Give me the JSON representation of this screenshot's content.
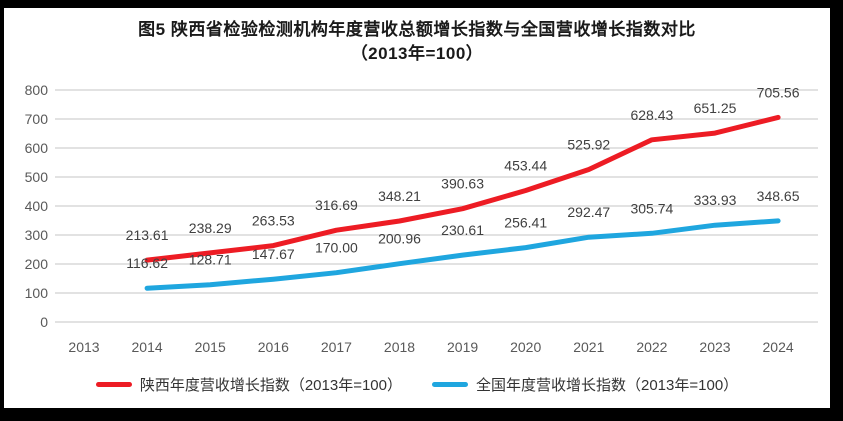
{
  "title": {
    "line1": "图5  陕西省检验检测机构年度营收总额增长指数与全国营收增长指数对比",
    "line2": "（2013年=100）"
  },
  "colors": {
    "shaanxi_line": "#ED1C24",
    "national_line": "#1FA6DF",
    "gridline": "#D9D9D9",
    "axis_text": "#595959",
    "data_label_text": "#404040",
    "frame": "#000000",
    "background": "#FFFFFF"
  },
  "chart_data": {
    "type": "line",
    "title": "图5  陕西省检验检测机构年度营收总额增长指数与全国营收增长指数对比（2013年=100）",
    "categories": [
      "2013",
      "2014",
      "2015",
      "2016",
      "2017",
      "2018",
      "2019",
      "2020",
      "2021",
      "2022",
      "2023",
      "2024"
    ],
    "series": [
      {
        "name": "陕西年度营收增长指数（2013年=100）",
        "color": "#ED1C24",
        "values": [
          null,
          213.61,
          238.29,
          263.53,
          316.69,
          348.21,
          390.63,
          453.44,
          525.92,
          628.43,
          651.25,
          705.56
        ],
        "value_labels": [
          "",
          "213.61",
          "238.29",
          "263.53",
          "316.69",
          "348.21",
          "390.63",
          "453.44",
          "525.92",
          "628.43",
          "651.25",
          "705.56"
        ]
      },
      {
        "name": "全国年度营收增长指数（2013年=100）",
        "color": "#1FA6DF",
        "values": [
          null,
          116.62,
          128.71,
          147.67,
          170.0,
          200.96,
          230.61,
          256.41,
          292.47,
          305.74,
          333.93,
          348.65
        ],
        "value_labels": [
          "",
          "116.62",
          "128.71",
          "147.67",
          "170.00",
          "200.96",
          "230.61",
          "256.41",
          "292.47",
          "305.74",
          "333.93",
          "348.65"
        ]
      }
    ],
    "xlabel": "",
    "ylabel": "",
    "ylim": [
      0,
      800
    ],
    "ytick_step": 100,
    "yticks": [
      "0",
      "100",
      "200",
      "300",
      "400",
      "500",
      "600",
      "700",
      "800"
    ],
    "grid": true,
    "legend_position": "bottom"
  }
}
